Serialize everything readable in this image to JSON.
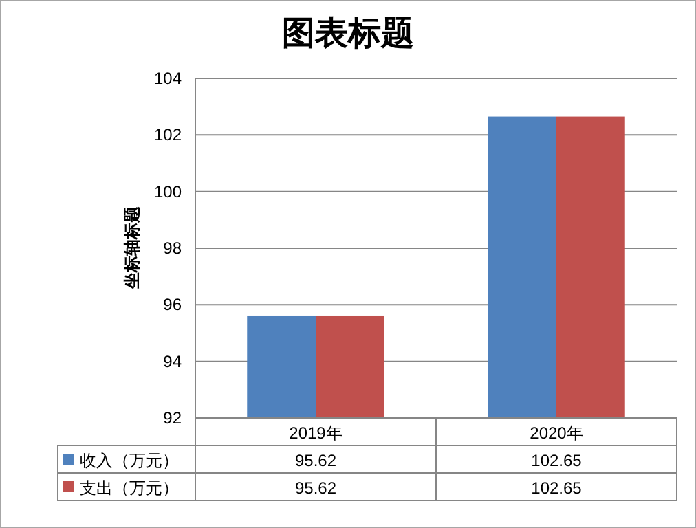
{
  "chart_data": {
    "type": "bar",
    "title": "图表标题",
    "ylabel": "坐标轴标题",
    "categories": [
      "2019年",
      "2020年"
    ],
    "series": [
      {
        "name": "收入（万元）",
        "color": "#4f81bd",
        "values": [
          95.62,
          102.65
        ]
      },
      {
        "name": "支出（万元）",
        "color": "#c0504d",
        "values": [
          95.62,
          102.65
        ]
      }
    ],
    "ylim": [
      92,
      104
    ],
    "yticks": [
      92,
      94,
      96,
      98,
      100,
      102,
      104
    ],
    "grid": "y",
    "legend": "bottom",
    "data_labels": true
  }
}
